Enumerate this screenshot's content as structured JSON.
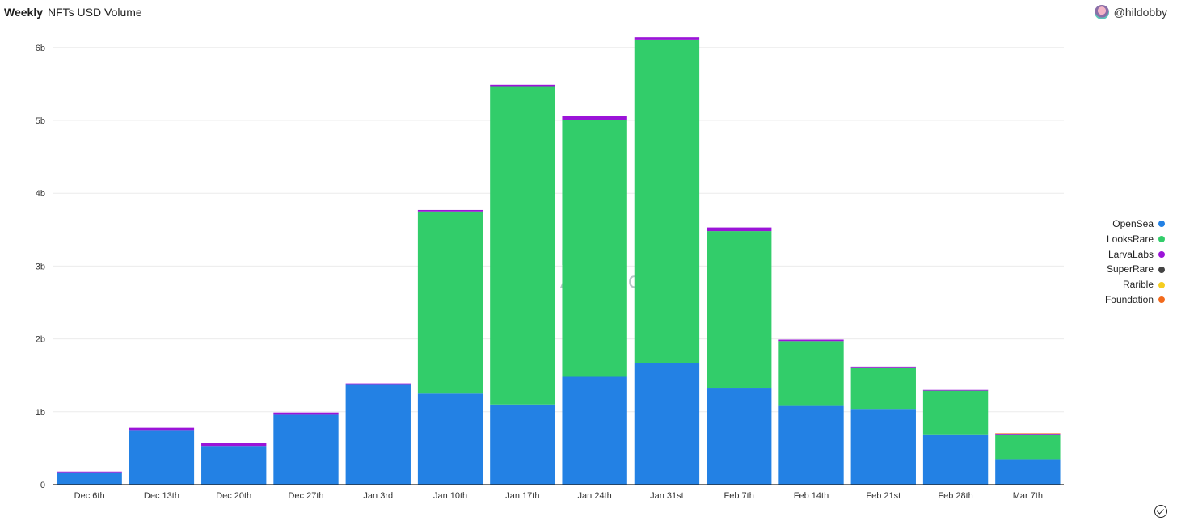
{
  "header": {
    "tab": "Weekly",
    "title": "NFTs USD Volume",
    "user": "@hildobby"
  },
  "watermark": {
    "line1": "Dune",
    "line2": "Analytics"
  },
  "colors": {
    "OpenSea": "#2381e4",
    "LooksRare": "#32cd6a",
    "LarvaLabs": "#9b14d8",
    "SuperRare": "#444444",
    "Rarible": "#f5cd20",
    "Foundation": "#f26a1c"
  },
  "chart_data": {
    "type": "bar",
    "stacked": true,
    "title": "NFTs USD Volume",
    "categories": [
      "Dec 6th",
      "Dec 13th",
      "Dec 20th",
      "Dec 27th",
      "Jan 3rd",
      "Jan 10th",
      "Jan 17th",
      "Jan 24th",
      "Jan 31st",
      "Feb 7th",
      "Feb 14th",
      "Feb 21st",
      "Feb 28th",
      "Mar 7th"
    ],
    "y_ticks": [
      "0",
      "1b",
      "2b",
      "3b",
      "4b",
      "5b",
      "6b"
    ],
    "ylim": [
      0,
      6.3
    ],
    "unit": "b",
    "grid": true,
    "legend_position": "right",
    "series": [
      {
        "name": "OpenSea",
        "values": [
          0.17,
          0.75,
          0.53,
          0.96,
          1.37,
          1.25,
          1.1,
          1.48,
          1.67,
          1.33,
          1.08,
          1.04,
          0.69,
          0.35
        ]
      },
      {
        "name": "LooksRare",
        "values": [
          0.0,
          0.0,
          0.0,
          0.0,
          0.0,
          2.5,
          4.36,
          3.53,
          4.44,
          2.15,
          0.89,
          0.57,
          0.6,
          0.34
        ]
      },
      {
        "name": "LarvaLabs",
        "values": [
          0.01,
          0.03,
          0.04,
          0.03,
          0.02,
          0.02,
          0.03,
          0.05,
          0.03,
          0.05,
          0.02,
          0.01,
          0.01,
          0.01
        ]
      },
      {
        "name": "SuperRare",
        "values": [
          0.0,
          0.0,
          0.0,
          0.0,
          0.0,
          0.0,
          0.0,
          0.0,
          0.0,
          0.0,
          0.0,
          0.0,
          0.0,
          0.0
        ]
      },
      {
        "name": "Rarible",
        "values": [
          0.0,
          0.0,
          0.0,
          0.0,
          0.0,
          0.0,
          0.0,
          0.0,
          0.0,
          0.0,
          0.0,
          0.0,
          0.0,
          0.0
        ]
      },
      {
        "name": "Foundation",
        "values": [
          0.0,
          0.0,
          0.0,
          0.0,
          0.0,
          0.0,
          0.0,
          0.0,
          0.0,
          0.0,
          0.0,
          0.0,
          0.0,
          0.005
        ]
      }
    ]
  }
}
